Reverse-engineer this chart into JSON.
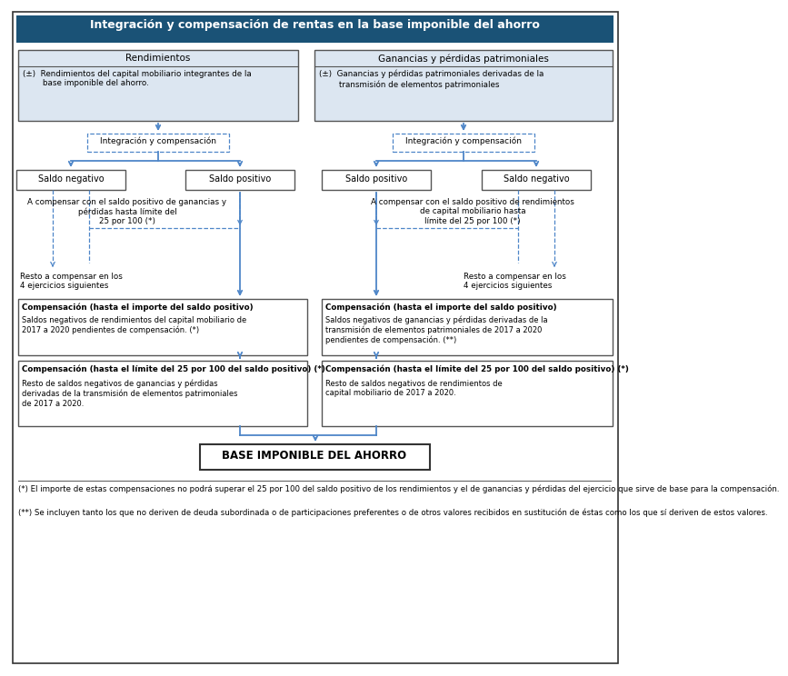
{
  "title": "Integración y compensación de rentas en la base imponible del ahorro",
  "title_bg": "#1a5276",
  "title_color": "#ffffff",
  "box_light_blue": "#dce6f1",
  "border_gray": "#555555",
  "border_blue": "#4e86c8",
  "arrow_blue": "#4e86c8",
  "footnote1": "(*) El importe de estas compensaciones no podrá superar el 25 por 100 del saldo positivo de los rendimientos y el de ganancias y pérdidas del ejercicio que sirve de base para la compensación.",
  "footnote2": "(**) Se incluyen tanto los que no deriven de deuda subordinada o de participaciones preferentes o de otros valores recibidos en sustitución de éstas como los que sí deriven de estos valores."
}
